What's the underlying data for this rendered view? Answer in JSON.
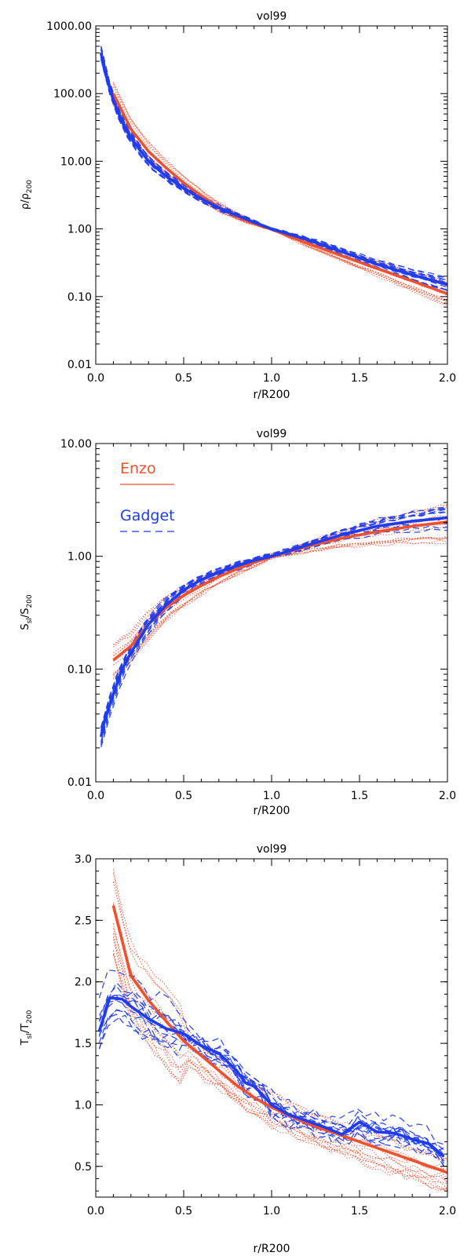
{
  "colors": {
    "enzo": "#f0502d",
    "gadget": "#1f3cf0",
    "axis": "#000000"
  },
  "chart_data": [
    {
      "type": "line",
      "title": "vol99",
      "xlabel": "r/R200",
      "ylabel": {
        "main": "ρ/ρ",
        "sub": "200"
      },
      "yscale": "log",
      "xlim": [
        0,
        2
      ],
      "ylim": [
        0.01,
        1000
      ],
      "x_ticks": [
        "0.0",
        "0.5",
        "1.0",
        "1.5",
        "2.0"
      ],
      "y_ticks": [
        {
          "v": 0.01,
          "label": "0.01"
        },
        {
          "v": 0.1,
          "label": "0.10"
        },
        {
          "v": 1,
          "label": "1.00"
        },
        {
          "v": 10,
          "label": "10.00"
        },
        {
          "v": 100,
          "label": "100.00"
        },
        {
          "v": 1000,
          "label": "1000.00"
        }
      ],
      "series": [
        {
          "name": "Enzo",
          "style": "solid",
          "x": [
            0.1,
            0.2,
            0.3,
            0.4,
            0.5,
            0.6,
            0.7,
            0.8,
            0.9,
            1.0,
            1.2,
            1.4,
            1.6,
            1.8,
            2.0
          ],
          "y": [
            100,
            30,
            14,
            8,
            4.8,
            3.1,
            2.1,
            1.55,
            1.2,
            1.0,
            0.62,
            0.4,
            0.26,
            0.17,
            0.11
          ]
        },
        {
          "name": "Gadget",
          "style": "solid",
          "x": [
            0.03,
            0.05,
            0.1,
            0.15,
            0.2,
            0.3,
            0.4,
            0.5,
            0.6,
            0.7,
            0.8,
            0.9,
            1.0,
            1.2,
            1.4,
            1.6,
            1.8,
            2.0
          ],
          "y": [
            400,
            220,
            80,
            38,
            22,
            10,
            6,
            4,
            2.8,
            2.05,
            1.6,
            1.25,
            1.0,
            0.7,
            0.46,
            0.3,
            0.21,
            0.15
          ]
        }
      ],
      "legend": []
    },
    {
      "type": "line",
      "title": "vol99",
      "xlabel": "r/R200",
      "ylabel": {
        "main": "S",
        "sub": "sl",
        "main2": "/S",
        "sub2": "200"
      },
      "yscale": "log",
      "xlim": [
        0,
        2
      ],
      "ylim": [
        0.01,
        10
      ],
      "x_ticks": [
        "0.0",
        "0.5",
        "1.0",
        "1.5",
        "2.0"
      ],
      "y_ticks": [
        {
          "v": 0.01,
          "label": "0.01"
        },
        {
          "v": 0.1,
          "label": "0.10"
        },
        {
          "v": 1,
          "label": "1.00"
        },
        {
          "v": 10,
          "label": "10.00"
        }
      ],
      "series": [
        {
          "name": "Enzo",
          "style": "solid",
          "x": [
            0.1,
            0.2,
            0.3,
            0.4,
            0.5,
            0.6,
            0.7,
            0.8,
            0.9,
            1.0,
            1.2,
            1.4,
            1.6,
            1.8,
            2.0
          ],
          "y": [
            0.12,
            0.16,
            0.25,
            0.35,
            0.45,
            0.55,
            0.66,
            0.77,
            0.88,
            1.0,
            1.22,
            1.45,
            1.65,
            1.85,
            2.02
          ]
        },
        {
          "name": "Gadget",
          "style": "solid",
          "x": [
            0.03,
            0.05,
            0.1,
            0.15,
            0.2,
            0.3,
            0.4,
            0.5,
            0.6,
            0.7,
            0.8,
            0.9,
            1.0,
            1.2,
            1.4,
            1.6,
            1.8,
            2.0
          ],
          "y": [
            0.025,
            0.035,
            0.06,
            0.1,
            0.14,
            0.25,
            0.37,
            0.5,
            0.62,
            0.72,
            0.82,
            0.92,
            1.0,
            1.25,
            1.55,
            1.85,
            2.05,
            2.2
          ]
        }
      ],
      "legend": [
        {
          "name": "Enzo",
          "style": "solid"
        },
        {
          "name": "Gadget",
          "style": "dashed"
        }
      ]
    },
    {
      "type": "line",
      "title": "vol99",
      "xlabel": "r/R200",
      "ylabel": {
        "main": "T",
        "sub": "sl",
        "main2": "/T",
        "sub2": "200"
      },
      "yscale": "linear",
      "xlim": [
        0,
        2
      ],
      "ylim": [
        0.25,
        3.0
      ],
      "x_ticks": [
        "0.0",
        "0.5",
        "1.0",
        "1.5",
        "2.0"
      ],
      "y_ticks": [
        {
          "v": 0.5,
          "label": "0.5"
        },
        {
          "v": 1.0,
          "label": "1.0"
        },
        {
          "v": 1.5,
          "label": "1.5"
        },
        {
          "v": 2.0,
          "label": "2.0"
        },
        {
          "v": 2.5,
          "label": "2.5"
        },
        {
          "v": 3.0,
          "label": "3.0"
        }
      ],
      "series": [
        {
          "name": "Enzo",
          "style": "solid",
          "x": [
            0.1,
            0.2,
            0.3,
            0.4,
            0.5,
            0.6,
            0.7,
            0.8,
            0.9,
            1.0,
            1.2,
            1.4,
            1.6,
            1.8,
            2.0
          ],
          "y": [
            2.62,
            2.05,
            1.85,
            1.68,
            1.52,
            1.4,
            1.28,
            1.16,
            1.06,
            0.98,
            0.85,
            0.75,
            0.65,
            0.55,
            0.45
          ]
        },
        {
          "name": "Gadget",
          "style": "solid",
          "x": [
            0.02,
            0.08,
            0.15,
            0.2,
            0.3,
            0.4,
            0.5,
            0.6,
            0.7,
            0.8,
            0.85,
            0.9,
            0.95,
            1.0,
            1.1,
            1.2,
            1.3,
            1.4,
            1.5,
            1.6,
            1.7,
            1.8,
            1.9,
            1.98
          ],
          "y": [
            1.6,
            1.87,
            1.86,
            1.8,
            1.7,
            1.62,
            1.58,
            1.48,
            1.42,
            1.28,
            1.18,
            1.15,
            1.08,
            1.0,
            0.92,
            0.87,
            0.82,
            0.76,
            0.86,
            0.78,
            0.77,
            0.72,
            0.68,
            0.58
          ]
        }
      ],
      "legend": []
    }
  ]
}
